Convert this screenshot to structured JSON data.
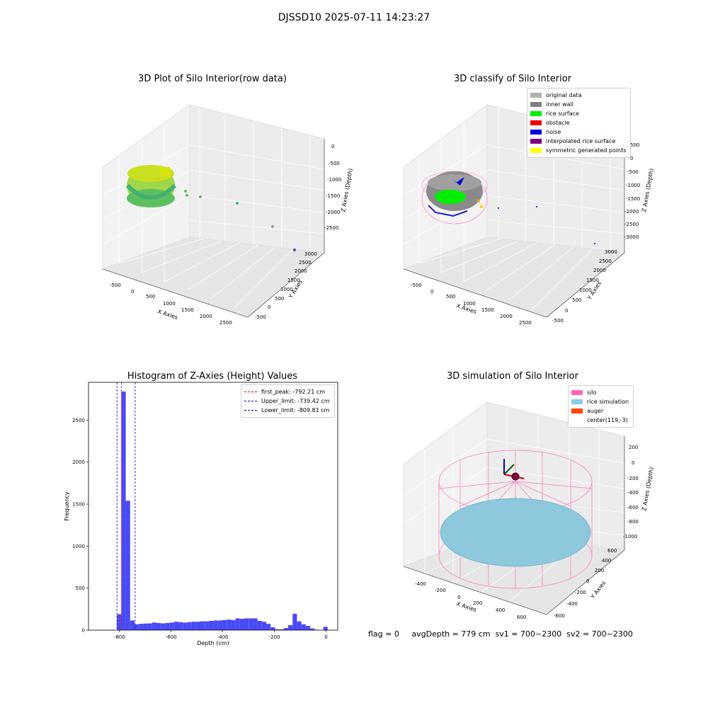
{
  "suptitle": "DJSSD10 2025-07-11 14:23:27",
  "panels": {
    "raw": {
      "title": "3D Plot of Silo Interior(row data)",
      "x_ticks": [
        "-500",
        "0",
        "500",
        "1000",
        "1500",
        "2000",
        "2500"
      ],
      "y_ticks": [
        "-500",
        "0",
        "500",
        "1000",
        "1500",
        "2000",
        "2500",
        "3000"
      ],
      "z_ticks": [
        "0",
        "-500",
        "-1000",
        "-1500",
        "-2000",
        "-2500"
      ],
      "xlabel": "X Axies",
      "ylabel": "Y Axies",
      "zlabel": "Z Axies (Depth)"
    },
    "classify": {
      "title": "3D classify of Silo Interior",
      "x_ticks": [
        "-500",
        "0",
        "500",
        "1000",
        "1500",
        "2000",
        "2500"
      ],
      "y_ticks": [
        "-500",
        "0",
        "500",
        "1000",
        "1500",
        "2000",
        "2500",
        "3000"
      ],
      "z_ticks": [
        "500",
        "0",
        "-500",
        "-1000",
        "-1500",
        "-2000",
        "-2500",
        "-3000"
      ],
      "xlabel": "X Axies",
      "ylabel": "Y Axies",
      "zlabel": "Z Axies (Depth)",
      "legend": [
        {
          "label": "original data",
          "color": "#b0b0b0"
        },
        {
          "label": "inner wall",
          "color": "#808080"
        },
        {
          "label": "rice surface",
          "color": "#00ee00"
        },
        {
          "label": "obstacle",
          "color": "#ee0000"
        },
        {
          "label": "noise",
          "color": "#0000dd"
        },
        {
          "label": "interpolated rice surface",
          "color": "#800080"
        },
        {
          "label": "symmetric generated points",
          "color": "#ffff00"
        }
      ]
    },
    "simulation": {
      "title": "3D simulation of Silo Interior",
      "x_ticks": [
        "-400",
        "-200",
        "0",
        "200",
        "400",
        "600"
      ],
      "y_ticks": [
        "-600",
        "-400",
        "-200",
        "0",
        "200",
        "400",
        "600"
      ],
      "z_ticks": [
        "200",
        "0",
        "-200",
        "-400",
        "-600",
        "-800",
        "-1000"
      ],
      "xlabel": "X Axies",
      "ylabel": "Y Axies",
      "zlabel": "Z Axies (Depth)",
      "legend": [
        {
          "label": "silo",
          "color": "#ff69b4"
        },
        {
          "label": "rice simulation",
          "color": "#87ceeb"
        },
        {
          "label": "auger",
          "color": "#ff4500"
        },
        {
          "label": "center(119,-3)",
          "color": "#ffffff"
        }
      ]
    }
  },
  "footer": {
    "flag": "flag = 0",
    "avg_depth": "avgDepth = 779 cm",
    "sv1": "sv1 = 700~2300",
    "sv2": "sv2 = 700~2300"
  },
  "chart_data": [
    {
      "type": "scatter",
      "title": "3D Plot of Silo Interior(row data)",
      "xlabel": "X Axies",
      "ylabel": "Y Axies",
      "zlabel": "Z Axies (Depth)",
      "xlim": [
        -700,
        2800
      ],
      "ylim": [
        -600,
        3200
      ],
      "zlim": [
        -2800,
        100
      ]
    },
    {
      "type": "scatter",
      "title": "3D classify of Silo Interior",
      "xlabel": "X Axies",
      "ylabel": "Y Axies",
      "zlabel": "Z Axies (Depth)",
      "series": [
        {
          "name": "original data"
        },
        {
          "name": "inner wall"
        },
        {
          "name": "rice surface"
        },
        {
          "name": "obstacle"
        },
        {
          "name": "noise"
        },
        {
          "name": "interpolated rice surface"
        },
        {
          "name": "symmetric generated points"
        }
      ],
      "legend_position": "top-right"
    },
    {
      "type": "bar",
      "title": "Histogram of Z-Axies (Height) Values",
      "xlabel": "Depth (cm)",
      "ylabel": "Frequency",
      "xlim": [
        -920,
        45
      ],
      "ylim": [
        0,
        2950
      ],
      "x_ticks": [
        -800,
        -600,
        -400,
        -200,
        0
      ],
      "y_ticks": [
        0,
        500,
        1000,
        1500,
        2000,
        2500
      ],
      "bin_width": 17,
      "bins": [
        {
          "x": -809.8,
          "y": 190
        },
        {
          "x": -792.8,
          "y": 2840
        },
        {
          "x": -775.8,
          "y": 1540
        },
        {
          "x": -758.8,
          "y": 115
        },
        {
          "x": -741.8,
          "y": 70
        },
        {
          "x": -724.8,
          "y": 75
        },
        {
          "x": -707.8,
          "y": 78
        },
        {
          "x": -690.8,
          "y": 80
        },
        {
          "x": -673.8,
          "y": 90
        },
        {
          "x": -656.8,
          "y": 85
        },
        {
          "x": -639.8,
          "y": 80
        },
        {
          "x": -622.8,
          "y": 85
        },
        {
          "x": -605.8,
          "y": 90
        },
        {
          "x": -588.8,
          "y": 100
        },
        {
          "x": -571.8,
          "y": 95
        },
        {
          "x": -554.8,
          "y": 90
        },
        {
          "x": -537.8,
          "y": 95
        },
        {
          "x": -520.8,
          "y": 100
        },
        {
          "x": -503.8,
          "y": 100
        },
        {
          "x": -486.8,
          "y": 105
        },
        {
          "x": -469.8,
          "y": 105
        },
        {
          "x": -452.8,
          "y": 110
        },
        {
          "x": -435.8,
          "y": 115
        },
        {
          "x": -418.8,
          "y": 115
        },
        {
          "x": -401.8,
          "y": 120
        },
        {
          "x": -384.8,
          "y": 125
        },
        {
          "x": -367.8,
          "y": 120
        },
        {
          "x": -350.8,
          "y": 140
        },
        {
          "x": -333.8,
          "y": 135
        },
        {
          "x": -316.8,
          "y": 140
        },
        {
          "x": -299.8,
          "y": 140
        },
        {
          "x": -282.8,
          "y": 140
        },
        {
          "x": -265.8,
          "y": 110
        },
        {
          "x": -248.8,
          "y": 100
        },
        {
          "x": -231.8,
          "y": 75
        },
        {
          "x": -214.8,
          "y": 35
        },
        {
          "x": -197.8,
          "y": 10
        },
        {
          "x": -180.8,
          "y": 10
        },
        {
          "x": -163.8,
          "y": 25
        },
        {
          "x": -146.8,
          "y": 60
        },
        {
          "x": -129.8,
          "y": 195
        },
        {
          "x": -112.8,
          "y": 105
        },
        {
          "x": -95.8,
          "y": 70
        },
        {
          "x": -78.8,
          "y": 50
        },
        {
          "x": -61.8,
          "y": 20
        },
        {
          "x": -44.8,
          "y": 5
        },
        {
          "x": -27.8,
          "y": 2
        },
        {
          "x": -10.8,
          "y": 40
        }
      ],
      "vlines": [
        {
          "label": "first_peak: -792.21 cm",
          "x": -792.21,
          "color": "#ee0000"
        },
        {
          "label": "Upper_limit: -739.42 cm",
          "x": -739.42,
          "color": "#0000cc"
        },
        {
          "label": "Lower_limit: -809.81 cm",
          "x": -809.81,
          "color": "#0000cc"
        }
      ],
      "bar_color": "#4a4af5",
      "legend_position": "top-right"
    },
    {
      "type": "scatter",
      "title": "3D simulation of Silo Interior",
      "xlabel": "X Axies",
      "ylabel": "Y Axies",
      "zlabel": "Z Axies (Depth)",
      "series": [
        {
          "name": "silo"
        },
        {
          "name": "rice simulation"
        },
        {
          "name": "auger"
        },
        {
          "name": "center(119,-3)"
        }
      ],
      "legend_position": "top-right"
    }
  ]
}
